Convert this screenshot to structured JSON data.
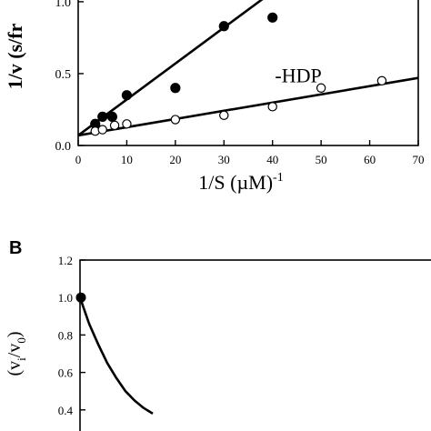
{
  "chart_data": [
    {
      "type": "scatter",
      "title": "",
      "xlabel": "1/S (µM)",
      "xlabel_superscript": "-1",
      "ylabel": "1/v (s/fr",
      "xlim": [
        0,
        70
      ],
      "ylim": [
        0,
        1.05
      ],
      "xticks": [
        "0",
        "10",
        "20",
        "30",
        "40",
        "50",
        "60",
        "70"
      ],
      "yticks": [
        "0.0",
        "0.5",
        "1.0"
      ],
      "grid": false,
      "series": [
        {
          "name": "",
          "marker": "filled-circle",
          "x": [
            3.5,
            5,
            7,
            10,
            20,
            30,
            40
          ],
          "y": [
            0.15,
            0.2,
            0.2,
            0.35,
            0.4,
            0.83,
            0.89
          ],
          "fit_line": {
            "x": [
              0,
              40
            ],
            "y": [
              0.07,
              1.07
            ]
          }
        },
        {
          "name": "-HDP",
          "marker": "open-circle",
          "x": [
            3.5,
            5,
            7.5,
            10,
            20,
            30,
            40,
            50,
            62.5
          ],
          "y": [
            0.1,
            0.11,
            0.14,
            0.15,
            0.18,
            0.21,
            0.27,
            0.4,
            0.45
          ],
          "fit_line": {
            "x": [
              0,
              70
            ],
            "y": [
              0.07,
              0.47
            ]
          }
        }
      ],
      "annotations": [
        {
          "text": "-HDP",
          "x": 40.5,
          "y": 0.49
        }
      ]
    },
    {
      "type": "line",
      "panel_label": "B",
      "title": "",
      "ylabel": "(v",
      "ylabel_sub1": "i",
      "ylabel_mid": "/v",
      "ylabel_sub2": "0",
      "ylabel_end": ")",
      "ylim": [
        0.2,
        1.2
      ],
      "yticks": [
        "0.4",
        "0.6",
        "0.8",
        "1.0",
        "1.2"
      ],
      "grid": false,
      "series": [
        {
          "name": "",
          "marker": "filled-circle",
          "points": {
            "x": [
              0
            ],
            "y": [
              1.0
            ]
          },
          "curve": {
            "x": [
              0,
              0.05,
              0.1,
              0.15,
              0.2,
              0.25,
              0.3,
              0.35,
              0.4
            ],
            "y": [
              1.0,
              0.86,
              0.75,
              0.65,
              0.57,
              0.5,
              0.45,
              0.41,
              0.38
            ]
          }
        }
      ]
    }
  ]
}
